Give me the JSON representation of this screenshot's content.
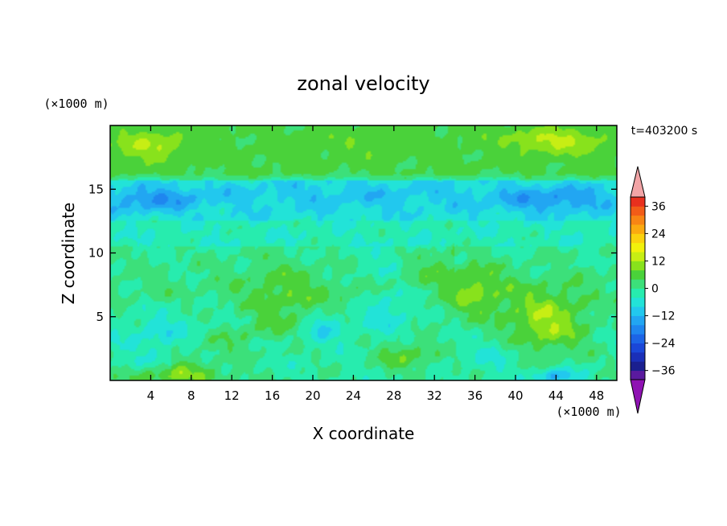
{
  "chart_data": {
    "type": "heatmap",
    "title": "zonal velocity",
    "xlabel": "X coordinate",
    "ylabel": "Z coordinate",
    "x_unit": "(×1000 m)",
    "y_unit": "(×1000 m)",
    "time_label": "t=403200 s",
    "xlim": [
      0,
      50
    ],
    "ylim": [
      0,
      20
    ],
    "x_ticks": [
      "4",
      "8",
      "12",
      "16",
      "20",
      "24",
      "28",
      "32",
      "36",
      "40",
      "44",
      "48"
    ],
    "x_tick_values": [
      4,
      8,
      12,
      16,
      20,
      24,
      28,
      32,
      36,
      40,
      44,
      48
    ],
    "y_ticks": [
      "5",
      "10",
      "15"
    ],
    "y_tick_values": [
      5,
      10,
      15
    ],
    "colorbar": {
      "levels": [
        -40,
        -36,
        -32,
        -28,
        -24,
        -20,
        -16,
        -12,
        -8,
        -4,
        0,
        4,
        8,
        12,
        16,
        20,
        24,
        28,
        32,
        36,
        40
      ],
      "colors": [
        "#5a1a9e",
        "#1a1f8f",
        "#1a2fb8",
        "#1a47d8",
        "#1c64e6",
        "#1f86ef",
        "#22a6f2",
        "#22c8ee",
        "#22e3d8",
        "#27ecae",
        "#3ce07a",
        "#4ad23a",
        "#88e21c",
        "#c7ee14",
        "#f2f10c",
        "#fbd20e",
        "#fbaa10",
        "#f88514",
        "#f25c18",
        "#e8301e"
      ],
      "under_color": "#8f12b3",
      "over_color": "#f2a4a6",
      "tick_labels": [
        "36",
        "24",
        "12",
        "0",
        "−12",
        "−24",
        "−36"
      ],
      "tick_values": [
        36,
        24,
        12,
        0,
        -12,
        -24,
        -36
      ]
    },
    "features": [
      {
        "x": 4,
        "z": 18.4,
        "sx": 4,
        "sz": 1.2,
        "value": 7
      },
      {
        "x": 24,
        "z": 18.5,
        "sx": 6,
        "sz": 1.0,
        "value": 2
      },
      {
        "x": 44,
        "z": 18.8,
        "sx": 5,
        "sz": 1.0,
        "value": 8
      },
      {
        "x": 4,
        "z": 14.2,
        "sx": 5,
        "sz": 1.0,
        "value": -9
      },
      {
        "x": 44,
        "z": 14.2,
        "sx": 6,
        "sz": 1.0,
        "value": -9
      },
      {
        "x": 24,
        "z": 14.5,
        "sx": 16,
        "sz": 1.2,
        "value": -4
      },
      {
        "x": 27,
        "z": 6.5,
        "sx": 3,
        "sz": 3,
        "value": -7
      },
      {
        "x": 21,
        "z": 4.5,
        "sx": 2,
        "sz": 1.5,
        "value": -8
      },
      {
        "x": 43,
        "z": 4.5,
        "sx": 4,
        "sz": 2.5,
        "value": 12
      },
      {
        "x": 36,
        "z": 7.0,
        "sx": 3,
        "sz": 2,
        "value": 9
      },
      {
        "x": 17,
        "z": 7.0,
        "sx": 4,
        "sz": 2,
        "value": 6
      },
      {
        "x": 5,
        "z": 3.5,
        "sx": 4,
        "sz": 2,
        "value": -5
      },
      {
        "x": 29,
        "z": 2.0,
        "sx": 3,
        "sz": 1.2,
        "value": 8
      },
      {
        "x": 7,
        "z": 0.3,
        "sx": 5,
        "sz": 0.8,
        "value": 10
      },
      {
        "x": 44,
        "z": 0.3,
        "sx": 2,
        "sz": 0.6,
        "value": -12
      },
      {
        "x": 38,
        "z": 2.0,
        "sx": 3,
        "sz": 1.2,
        "value": -4
      }
    ]
  }
}
